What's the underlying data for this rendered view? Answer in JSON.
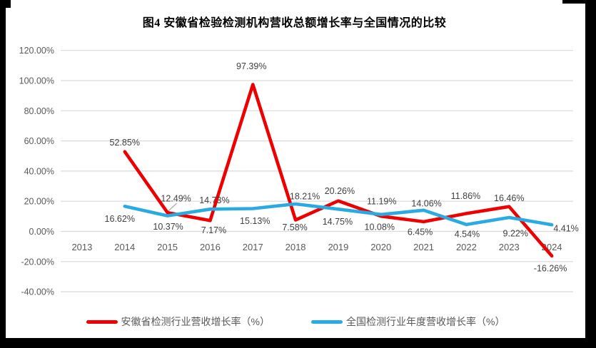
{
  "title": "图4 安徽省检验检测机构营收总额增长率与全国情况的比较",
  "colors": {
    "anhui_line": "#EE0000",
    "national_line": "#29ABE2",
    "grid": "#D9D9D9",
    "axis_text": "#595959",
    "data_label_text": "#404040",
    "leader_line": "#A6A6A6",
    "title_text": "#000000",
    "frame": "#000000",
    "background": "#FFFFFF"
  },
  "chart_data": {
    "type": "line",
    "title": "图4 安徽省检验检测机构营收总额增长率与全国情况的比较",
    "categories": [
      "2013",
      "2014",
      "2015",
      "2016",
      "2017",
      "2018",
      "2019",
      "2020",
      "2021",
      "2022",
      "2023",
      "2024"
    ],
    "series": [
      {
        "name": "安徽省检测行业营收增长率（%）",
        "color": "#EE0000",
        "values": [
          null,
          52.85,
          12.49,
          7.17,
          97.39,
          7.58,
          20.26,
          10.08,
          6.45,
          11.86,
          16.46,
          -16.26
        ],
        "labels": [
          "",
          "52.85%",
          "12.49%",
          "7.17%",
          "97.39%",
          "7.58%",
          "20.26%",
          "10.08%",
          "6.45%",
          "11.86%",
          "16.46%",
          "-16.26%"
        ],
        "label_offsets": [
          null,
          [
            0,
            -13
          ],
          [
            12,
            -20
          ],
          [
            5,
            13
          ],
          [
            -2,
            -26
          ],
          [
            -1,
            10
          ],
          [
            2,
            -14
          ],
          [
            -2,
            15
          ],
          [
            -5,
            14
          ],
          [
            -1,
            -25
          ],
          [
            0,
            -12
          ],
          [
            -2,
            17
          ]
        ]
      },
      {
        "name": "全国检测行业年度营收增长率（%）",
        "color": "#29ABE2",
        "values": [
          null,
          16.62,
          10.37,
          14.73,
          15.13,
          18.21,
          14.75,
          11.19,
          14.06,
          4.54,
          9.22,
          4.41
        ],
        "labels": [
          "",
          "16.62%",
          "10.37%",
          "14.73%",
          "15.13%",
          "18.21%",
          "14.75%",
          "11.19%",
          "14.06%",
          "4.54%",
          "9.22%",
          "4.41%"
        ],
        "label_offsets": [
          null,
          [
            -7,
            17
          ],
          [
            1,
            15
          ],
          [
            6,
            -13
          ],
          [
            3,
            17
          ],
          [
            13,
            -11
          ],
          [
            -1,
            17
          ],
          [
            1,
            -19
          ],
          [
            4,
            -10
          ],
          [
            1,
            13
          ],
          [
            9,
            22
          ],
          [
            20,
            5
          ]
        ]
      }
    ],
    "ylim": [
      -40,
      120
    ],
    "ytick_step": 20,
    "ytick_labels": [
      "120.00%",
      "100.00%",
      "80.00%",
      "60.00%",
      "40.00%",
      "20.00%",
      "0.00%",
      "-20.00%",
      "-40.00%"
    ],
    "grid": true,
    "legend_position": "bottom",
    "leader_line": {
      "series_index": 0,
      "point_index": 2
    }
  }
}
